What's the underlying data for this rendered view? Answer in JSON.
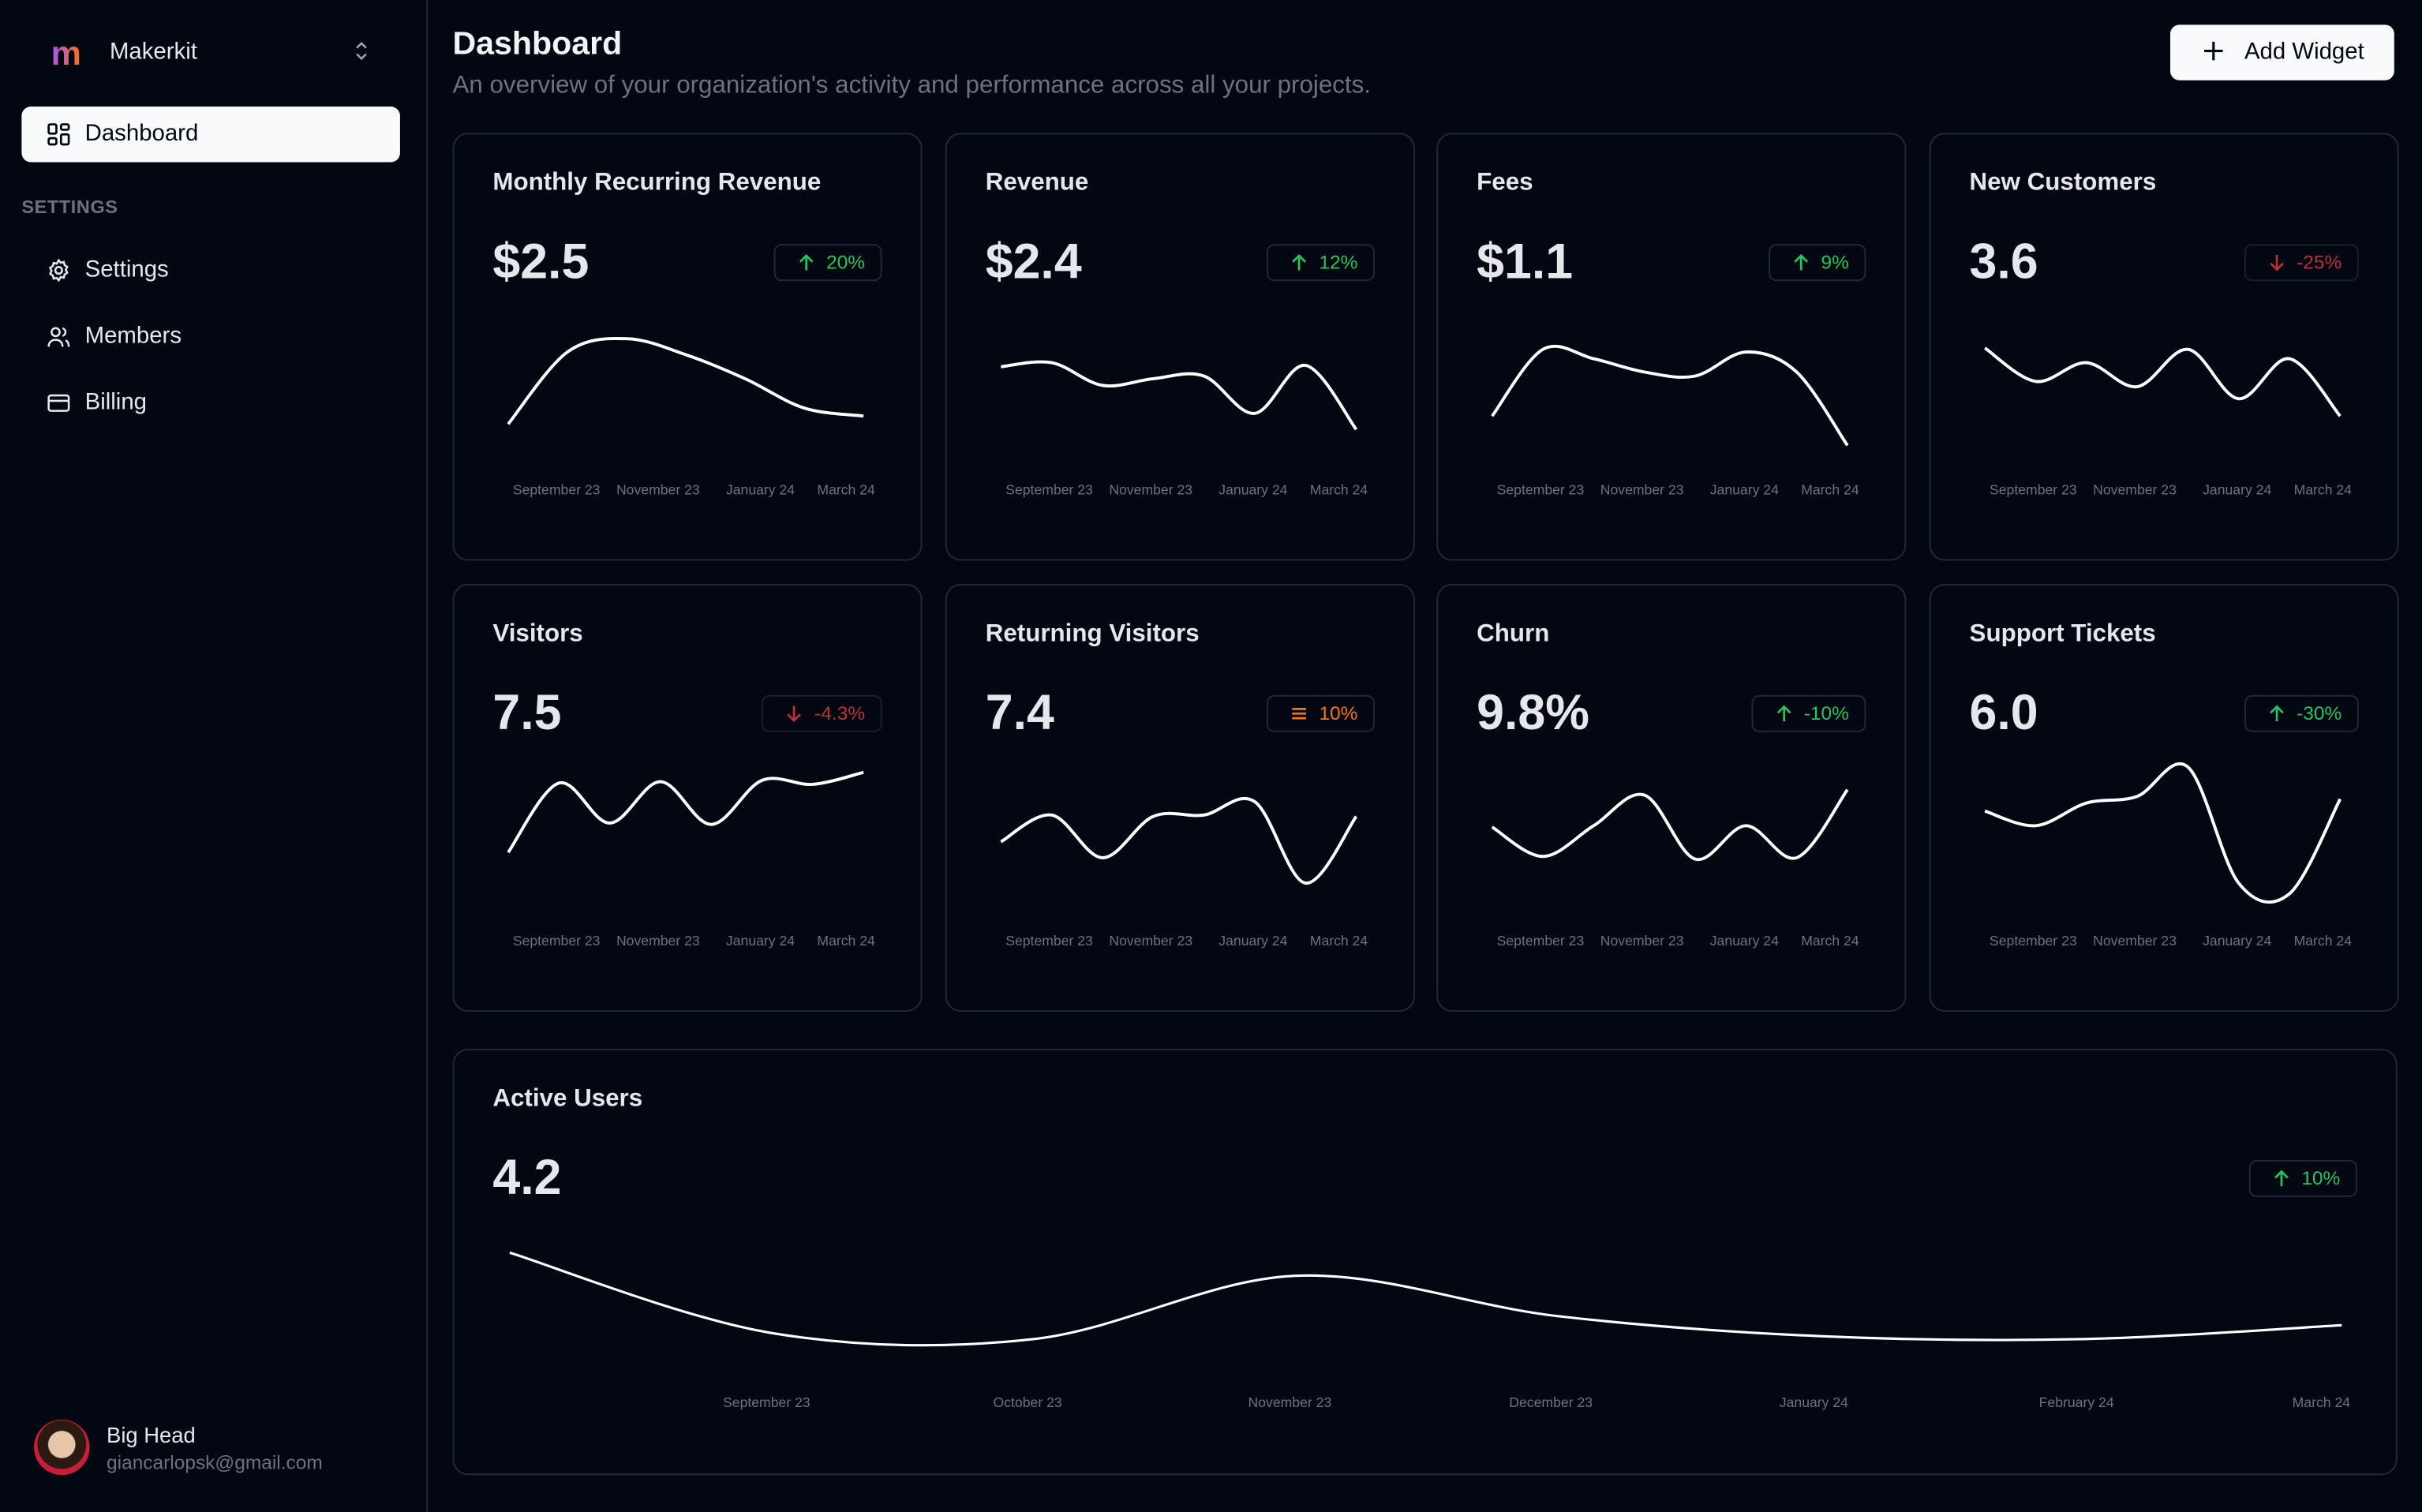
{
  "sidebar": {
    "logo": "m",
    "org_name": "Makerkit",
    "nav": [
      {
        "label": "Dashboard",
        "icon": "layout-dashboard-icon",
        "active": true
      }
    ],
    "section_label": "SETTINGS",
    "settings_items": [
      {
        "label": "Settings",
        "icon": "gear-icon"
      },
      {
        "label": "Members",
        "icon": "users-icon"
      },
      {
        "label": "Billing",
        "icon": "credit-card-icon"
      }
    ],
    "user": {
      "name": "Big Head",
      "email": "giancarlopsk@gmail.com"
    }
  },
  "header": {
    "title": "Dashboard",
    "subtitle": "An overview of your organization's activity and performance across all your projects.",
    "add_widget_label": "Add Widget"
  },
  "colors": {
    "up": "#22c55e",
    "down": "#ef4444",
    "neutral": "#f97316",
    "line": "#ffffff"
  },
  "chart_data": [
    {
      "type": "line",
      "title": "Monthly Recurring Revenue",
      "value": "$2.5",
      "trend": "up",
      "change": "20%",
      "x_ticks": [
        "September 23",
        "November 23",
        "January 24",
        "March 24"
      ],
      "values": [
        26,
        80,
        90,
        78,
        60,
        38,
        32
      ]
    },
    {
      "type": "line",
      "title": "Revenue",
      "value": "$2.4",
      "trend": "up",
      "change": "12%",
      "x_ticks": [
        "September 23",
        "November 23",
        "January 24",
        "March 24"
      ],
      "values": [
        69,
        72,
        55,
        60,
        62,
        34,
        70,
        22
      ]
    },
    {
      "type": "line",
      "title": "Fees",
      "value": "$1.1",
      "trend": "up",
      "change": "9%",
      "x_ticks": [
        "September 23",
        "November 23",
        "January 24",
        "March 24"
      ],
      "values": [
        32,
        82,
        75,
        65,
        62,
        80,
        65,
        10
      ]
    },
    {
      "type": "line",
      "title": "New Customers",
      "value": "3.6",
      "trend": "down",
      "change": "-25%",
      "x_ticks": [
        "September 23",
        "November 23",
        "January 24",
        "March 24"
      ],
      "values": [
        83,
        58,
        72,
        54,
        82,
        45,
        75,
        32
      ]
    },
    {
      "type": "line",
      "title": "Visitors",
      "value": "7.5",
      "trend": "down",
      "change": "-4.3%",
      "x_ticks": [
        "September 23",
        "November 23",
        "January 24",
        "March 24"
      ],
      "values": [
        43,
        95,
        65,
        96,
        64,
        97,
        94,
        103
      ]
    },
    {
      "type": "line",
      "title": "Returning Visitors",
      "value": "7.4",
      "trend": "neutral",
      "change": "10%",
      "x_ticks": [
        "September 23",
        "November 23",
        "January 24",
        "March 24"
      ],
      "values": [
        51,
        71,
        39,
        70,
        71,
        81,
        20,
        70
      ]
    },
    {
      "type": "line",
      "title": "Churn",
      "value": "9.8%",
      "trend": "up",
      "change": "-10%",
      "x_ticks": [
        "September 23",
        "November 23",
        "January 24",
        "March 24"
      ],
      "values": [
        62,
        40,
        63,
        86,
        38,
        63,
        39,
        90
      ]
    },
    {
      "type": "line",
      "title": "Support Tickets",
      "value": "6.0",
      "trend": "up",
      "change": "-30%",
      "x_ticks": [
        "September 23",
        "November 23",
        "January 24",
        "March 24"
      ],
      "values": [
        74,
        63,
        80,
        85,
        107,
        20,
        12,
        83
      ]
    },
    {
      "type": "line",
      "title": "Active Users",
      "value": "4.2",
      "trend": "up",
      "change": "10%",
      "x_ticks": [
        "September 23",
        "October 23",
        "November 23",
        "December 23",
        "January 24",
        "February 24",
        "March 24"
      ],
      "values": [
        90,
        38,
        34,
        75,
        49,
        36,
        34,
        43
      ]
    }
  ]
}
